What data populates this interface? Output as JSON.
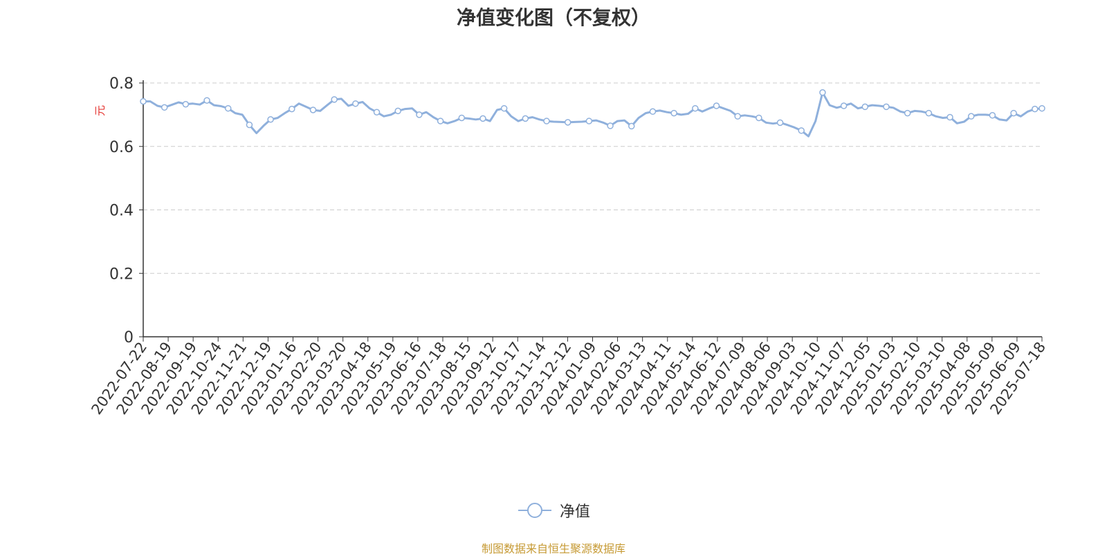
{
  "chart_data": {
    "type": "line",
    "title": "净值变化图（不复权）",
    "ylabel": "元",
    "ylim": [
      0,
      0.8
    ],
    "yticks": [
      0,
      0.2,
      0.4,
      0.6,
      0.8
    ],
    "ytick_labels": [
      "0",
      "0.2",
      "0.4",
      "0.6",
      "0.8"
    ],
    "grid": true,
    "legend_position": "bottom-center",
    "x_tick_labels": [
      "2022-07-22",
      "2022-08-19",
      "2022-09-19",
      "2022-10-24",
      "2022-11-21",
      "2022-12-19",
      "2023-01-16",
      "2023-02-20",
      "2023-03-20",
      "2023-04-18",
      "2023-05-19",
      "2023-06-16",
      "2023-07-18",
      "2023-08-15",
      "2023-09-12",
      "2023-10-17",
      "2023-11-14",
      "2023-12-12",
      "2024-01-09",
      "2024-02-06",
      "2024-03-13",
      "2024-04-11",
      "2024-05-14",
      "2024-06-12",
      "2024-07-09",
      "2024-08-06",
      "2024-09-03",
      "2024-10-10",
      "2024-11-07",
      "2024-12-05",
      "2025-01-03",
      "2025-02-10",
      "2025-03-10",
      "2025-04-08",
      "2025-05-09",
      "2025-06-09",
      "2025-07-18"
    ],
    "series": [
      {
        "name": "净值",
        "color": "#8fb0dc",
        "values": [
          0.742,
          0.742,
          0.728,
          0.723,
          0.731,
          0.739,
          0.733,
          0.735,
          0.732,
          0.745,
          0.73,
          0.727,
          0.72,
          0.705,
          0.7,
          0.668,
          0.642,
          0.665,
          0.685,
          0.69,
          0.705,
          0.718,
          0.735,
          0.725,
          0.715,
          0.712,
          0.73,
          0.748,
          0.75,
          0.728,
          0.735,
          0.74,
          0.72,
          0.708,
          0.695,
          0.7,
          0.712,
          0.718,
          0.72,
          0.7,
          0.708,
          0.692,
          0.68,
          0.673,
          0.68,
          0.69,
          0.688,
          0.685,
          0.688,
          0.68,
          0.715,
          0.72,
          0.695,
          0.68,
          0.688,
          0.692,
          0.685,
          0.68,
          0.678,
          0.677,
          0.676,
          0.677,
          0.678,
          0.68,
          0.682,
          0.675,
          0.665,
          0.68,
          0.682,
          0.664,
          0.69,
          0.705,
          0.71,
          0.713,
          0.708,
          0.705,
          0.7,
          0.703,
          0.72,
          0.71,
          0.72,
          0.728,
          0.72,
          0.712,
          0.695,
          0.698,
          0.695,
          0.69,
          0.675,
          0.672,
          0.675,
          0.668,
          0.66,
          0.65,
          0.632,
          0.68,
          0.77,
          0.73,
          0.722,
          0.728,
          0.735,
          0.72,
          0.725,
          0.73,
          0.728,
          0.725,
          0.722,
          0.71,
          0.705,
          0.712,
          0.71,
          0.705,
          0.695,
          0.69,
          0.692,
          0.673,
          0.678,
          0.695,
          0.7,
          0.7,
          0.698,
          0.685,
          0.682,
          0.705,
          0.695,
          0.71,
          0.718,
          0.72
        ]
      }
    ]
  },
  "legend_label": "净值",
  "footer_text": "制图数据来自恒生聚源数据库"
}
